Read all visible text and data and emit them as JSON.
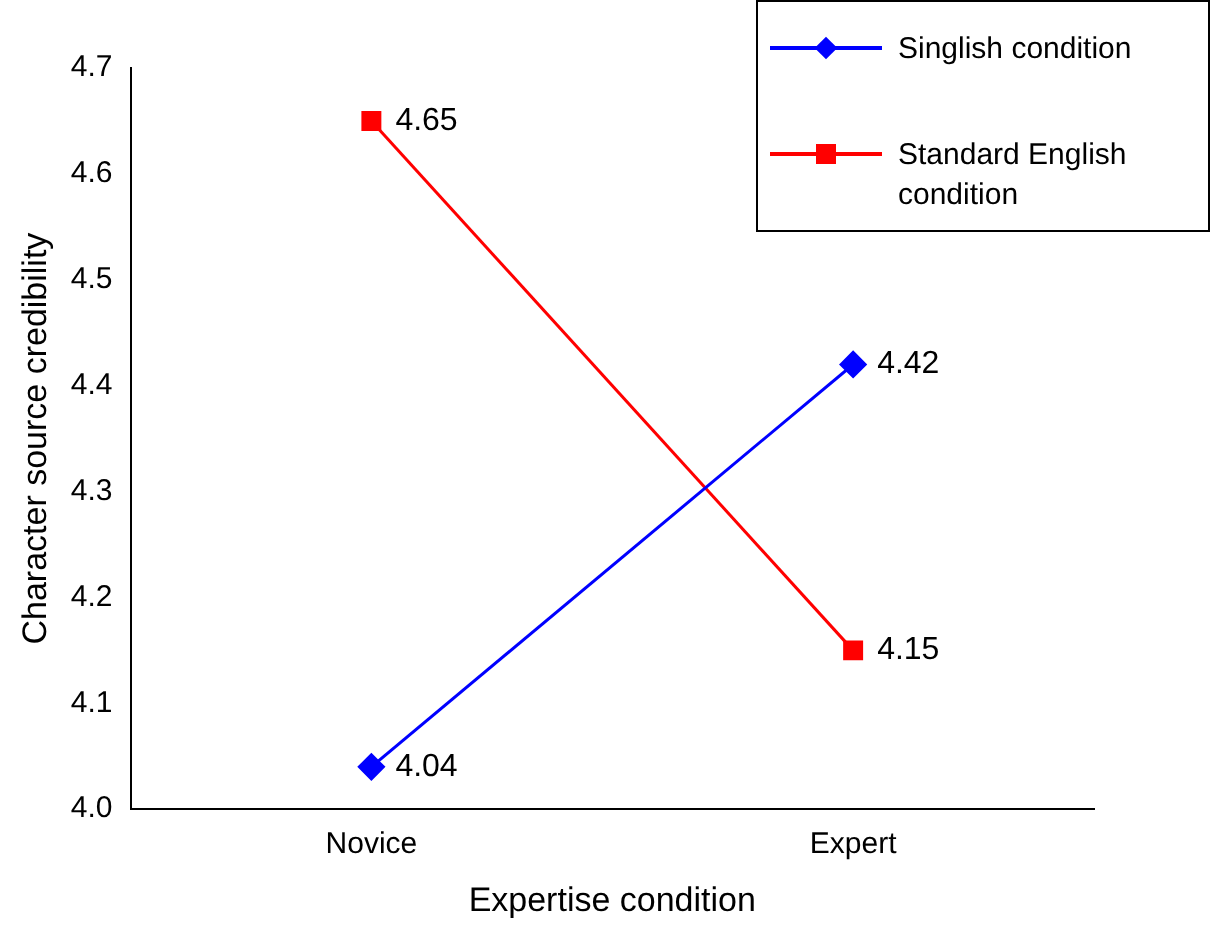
{
  "chart_data": {
    "type": "line",
    "xlabel": "Expertise condition",
    "ylabel": "Character source credibility",
    "categories": [
      "Novice",
      "Expert"
    ],
    "series": [
      {
        "name": "Singlish condition",
        "color": "#0000ff",
        "marker": "diamond",
        "values": [
          4.04,
          4.42
        ]
      },
      {
        "name": "Standard English condition",
        "color": "#ff0000",
        "marker": "square",
        "values": [
          4.65,
          4.15
        ]
      }
    ],
    "ylim": [
      4.0,
      4.7
    ],
    "yticks": [
      {
        "value": 4.0,
        "label": "4.0"
      },
      {
        "value": 4.1,
        "label": "4.1"
      },
      {
        "value": 4.2,
        "label": "4.2"
      },
      {
        "value": 4.3,
        "label": "4.3"
      },
      {
        "value": 4.4,
        "label": "4.4"
      },
      {
        "value": 4.5,
        "label": "4.5"
      },
      {
        "value": 4.6,
        "label": "4.6"
      },
      {
        "value": 4.7,
        "label": "4.7"
      }
    ],
    "grid": false,
    "legend": "top right",
    "data_labels": true
  }
}
